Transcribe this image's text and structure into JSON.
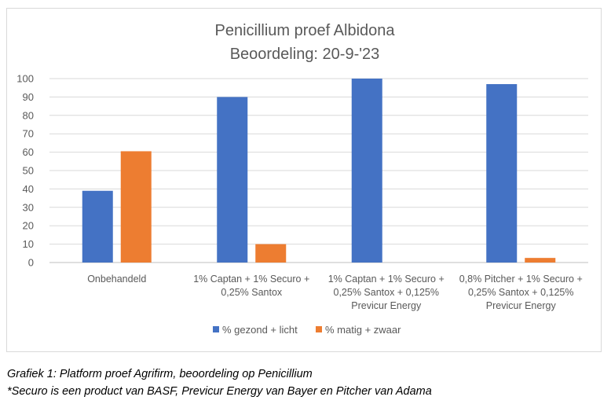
{
  "chart_data": {
    "type": "bar",
    "title": [
      "Penicillium proef Albidona",
      "Beoordeling: 20-9-'23"
    ],
    "categories": [
      [
        "Onbehandeld"
      ],
      [
        "1% Captan + 1% Securo +",
        "0,25% Santox"
      ],
      [
        "1% Captan + 1% Securo +",
        "0,25% Santox + 0,125%",
        "Previcur Energy"
      ],
      [
        "0,8% Pitcher + 1% Securo +",
        "0,25% Santox + 0,125%",
        "Previcur Energy"
      ]
    ],
    "series": [
      {
        "name": "% gezond + licht",
        "color": "#4472c4",
        "values": [
          39,
          90,
          100,
          97
        ]
      },
      {
        "name": "% matig + zwaar",
        "color": "#ed7d31",
        "values": [
          60.5,
          10,
          0,
          2.5
        ]
      }
    ],
    "ylim": [
      0,
      100
    ],
    "yticks": [
      0,
      10,
      20,
      30,
      40,
      50,
      60,
      70,
      80,
      90,
      100
    ],
    "xlabel": "",
    "ylabel": "",
    "grid": true,
    "legend": "bottom"
  },
  "caption": {
    "line1": "Grafiek 1: Platform proef Agrifirm, beoordeling op Penicillium",
    "line2": "*Securo is een product van BASF, Previcur Energy van Bayer en Pitcher van Adama"
  }
}
